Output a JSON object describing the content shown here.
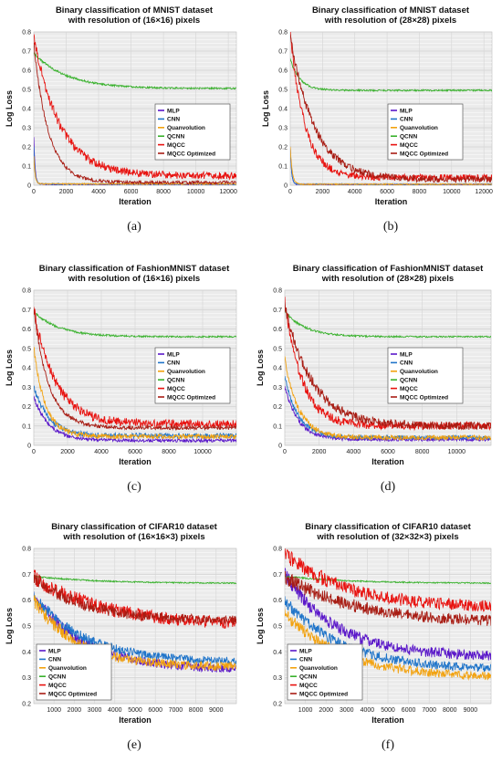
{
  "colors": {
    "MLP": "#5a17c9",
    "CNN": "#1f74c9",
    "Quanvolution": "#f2a20f",
    "QCNN": "#38b12c",
    "MQCC": "#e8120f",
    "MQCC Optimized": "#a81d14"
  },
  "chart_data": [
    {
      "type": "line",
      "panel": "(a)",
      "title": [
        "Binary classification of MNIST dataset",
        "with resolution of (16×16) pixels"
      ],
      "xlabel": "Iteration",
      "ylabel": "Log Loss",
      "xlim": [
        0,
        12500
      ],
      "ylim": [
        0,
        0.8
      ],
      "xticks": [
        0,
        2000,
        4000,
        6000,
        8000,
        10000,
        12000
      ],
      "yticks": [
        0,
        0.1,
        0.2,
        0.3,
        0.4,
        0.5,
        0.6,
        0.7,
        0.8
      ],
      "grid": true,
      "legend": "center-right",
      "series": [
        {
          "name": "MLP",
          "start": 0.25,
          "end": 0.005,
          "tau": 80,
          "noise": 0.003
        },
        {
          "name": "CNN",
          "start": 0.2,
          "end": 0.006,
          "tau": 80,
          "noise": 0.003
        },
        {
          "name": "Quanvolution",
          "start": 0.15,
          "end": 0.007,
          "tau": 80,
          "noise": 0.003
        },
        {
          "name": "QCNN",
          "start": 0.69,
          "end": 0.505,
          "tau": 2000,
          "noise": 0.004
        },
        {
          "name": "MQCC",
          "start": 0.78,
          "end": 0.05,
          "tau": 1600,
          "noise": 0.018
        },
        {
          "name": "MQCC Optimized",
          "start": 0.74,
          "end": 0.015,
          "tau": 900,
          "noise": 0.008
        }
      ]
    },
    {
      "type": "line",
      "panel": "(b)",
      "title": [
        "Binary classification of MNIST dataset",
        "with resolution of (28×28) pixels"
      ],
      "xlabel": "Iteration",
      "ylabel": "Log Loss",
      "xlim": [
        0,
        12500
      ],
      "ylim": [
        0,
        0.8
      ],
      "xticks": [
        0,
        2000,
        4000,
        6000,
        8000,
        10000,
        12000
      ],
      "yticks": [
        0,
        0.1,
        0.2,
        0.3,
        0.4,
        0.5,
        0.6,
        0.7,
        0.8
      ],
      "grid": true,
      "legend": "center-right",
      "series": [
        {
          "name": "MLP",
          "start": 0.2,
          "end": 0.004,
          "tau": 80,
          "noise": 0.003
        },
        {
          "name": "CNN",
          "start": 0.2,
          "end": 0.005,
          "tau": 80,
          "noise": 0.003
        },
        {
          "name": "Quanvolution",
          "start": 0.2,
          "end": 0.005,
          "tau": 120,
          "noise": 0.003
        },
        {
          "name": "QCNN",
          "start": 0.66,
          "end": 0.495,
          "tau": 600,
          "noise": 0.004
        },
        {
          "name": "MQCC",
          "start": 0.8,
          "end": 0.04,
          "tau": 900,
          "noise": 0.017
        },
        {
          "name": "MQCC Optimized",
          "start": 0.78,
          "end": 0.03,
          "tau": 1500,
          "noise": 0.016
        }
      ]
    },
    {
      "type": "line",
      "panel": "(c)",
      "title": [
        "Binary classification of FashionMNIST dataset",
        "with resolution of (16×16) pixels"
      ],
      "xlabel": "Iteration",
      "ylabel": "Log Loss",
      "xlim": [
        0,
        12000
      ],
      "ylim": [
        0,
        0.8
      ],
      "xticks": [
        0,
        2000,
        4000,
        6000,
        8000,
        10000
      ],
      "yticks": [
        0,
        0.1,
        0.2,
        0.3,
        0.4,
        0.5,
        0.6,
        0.7,
        0.8
      ],
      "grid": true,
      "legend": "right",
      "series": [
        {
          "name": "MLP",
          "start": 0.25,
          "end": 0.025,
          "tau": 900,
          "noise": 0.008
        },
        {
          "name": "CNN",
          "start": 0.3,
          "end": 0.05,
          "tau": 900,
          "noise": 0.012
        },
        {
          "name": "Quanvolution",
          "start": 0.5,
          "end": 0.045,
          "tau": 700,
          "noise": 0.012
        },
        {
          "name": "QCNN",
          "start": 0.69,
          "end": 0.56,
          "tau": 1500,
          "noise": 0.004
        },
        {
          "name": "MQCC",
          "start": 0.7,
          "end": 0.11,
          "tau": 1300,
          "noise": 0.02
        },
        {
          "name": "MQCC Optimized",
          "start": 0.7,
          "end": 0.09,
          "tau": 900,
          "noise": 0.009
        }
      ]
    },
    {
      "type": "line",
      "panel": "(d)",
      "title": [
        "Binary classification of FashionMNIST dataset",
        "with resolution of (28×28) pixels"
      ],
      "xlabel": "Iteration",
      "ylabel": "Log Loss",
      "xlim": [
        0,
        12000
      ],
      "ylim": [
        0,
        0.8
      ],
      "xticks": [
        0,
        2000,
        4000,
        6000,
        8000,
        10000
      ],
      "yticks": [
        0,
        0.1,
        0.2,
        0.3,
        0.4,
        0.5,
        0.6,
        0.7,
        0.8
      ],
      "grid": true,
      "legend": "right",
      "series": [
        {
          "name": "MLP",
          "start": 0.3,
          "end": 0.03,
          "tau": 800,
          "noise": 0.008
        },
        {
          "name": "CNN",
          "start": 0.35,
          "end": 0.04,
          "tau": 800,
          "noise": 0.01
        },
        {
          "name": "Quanvolution",
          "start": 0.45,
          "end": 0.04,
          "tau": 800,
          "noise": 0.012
        },
        {
          "name": "QCNN",
          "start": 0.69,
          "end": 0.56,
          "tau": 1200,
          "noise": 0.004
        },
        {
          "name": "MQCC",
          "start": 0.75,
          "end": 0.1,
          "tau": 1000,
          "noise": 0.02
        },
        {
          "name": "MQCC Optimized",
          "start": 0.72,
          "end": 0.1,
          "tau": 1600,
          "noise": 0.02
        }
      ]
    },
    {
      "type": "line",
      "panel": "(e)",
      "title": [
        "Binary classification of CIFAR10 dataset",
        "with resolution of (16×16×3) pixels"
      ],
      "xlabel": "Iteration",
      "ylabel": "Log Loss",
      "xlim": [
        0,
        10000
      ],
      "ylim": [
        0.2,
        0.8
      ],
      "xticks": [
        1000,
        2000,
        3000,
        4000,
        5000,
        6000,
        7000,
        8000,
        9000
      ],
      "yticks": [
        0.2,
        0.3,
        0.4,
        0.5,
        0.6,
        0.7,
        0.8
      ],
      "grid": true,
      "legend": "bottom-left",
      "series": [
        {
          "name": "MLP",
          "start": 0.62,
          "end": 0.33,
          "tau": 2500,
          "noise": 0.015
        },
        {
          "name": "CNN",
          "start": 0.62,
          "end": 0.36,
          "tau": 2500,
          "noise": 0.014
        },
        {
          "name": "Quanvolution",
          "start": 0.6,
          "end": 0.34,
          "tau": 2200,
          "noise": 0.016
        },
        {
          "name": "QCNN",
          "start": 0.693,
          "end": 0.665,
          "tau": 3000,
          "noise": 0.002
        },
        {
          "name": "MQCC",
          "start": 0.69,
          "end": 0.5,
          "tau": 3500,
          "noise": 0.02
        },
        {
          "name": "MQCC Optimized",
          "start": 0.69,
          "end": 0.52,
          "tau": 2500,
          "noise": 0.016
        }
      ]
    },
    {
      "type": "line",
      "panel": "(f)",
      "title": [
        "Binary classification of CIFAR10 dataset",
        "with resolution of (32×32×3) pixels"
      ],
      "xlabel": "Iteration",
      "ylabel": "Log Loss",
      "xlim": [
        0,
        10000
      ],
      "ylim": [
        0.2,
        0.8
      ],
      "xticks": [
        1000,
        2000,
        3000,
        4000,
        5000,
        6000,
        7000,
        8000,
        9000
      ],
      "yticks": [
        0.2,
        0.3,
        0.4,
        0.5,
        0.6,
        0.7,
        0.8
      ],
      "grid": true,
      "legend": "bottom-left",
      "series": [
        {
          "name": "MLP",
          "start": 0.7,
          "end": 0.38,
          "tau": 2500,
          "noise": 0.018
        },
        {
          "name": "CNN",
          "start": 0.6,
          "end": 0.33,
          "tau": 2800,
          "noise": 0.015
        },
        {
          "name": "Quanvolution",
          "start": 0.55,
          "end": 0.3,
          "tau": 2800,
          "noise": 0.015
        },
        {
          "name": "QCNN",
          "start": 0.693,
          "end": 0.665,
          "tau": 3000,
          "noise": 0.002
        },
        {
          "name": "MQCC",
          "start": 0.78,
          "end": 0.57,
          "tau": 3000,
          "noise": 0.02
        },
        {
          "name": "MQCC Optimized",
          "start": 0.69,
          "end": 0.51,
          "tau": 3500,
          "noise": 0.018
        }
      ]
    }
  ],
  "legend_labels": [
    "MLP",
    "CNN",
    "Quanvolution",
    "QCNN",
    "MQCC",
    "MQCC Optimized"
  ]
}
